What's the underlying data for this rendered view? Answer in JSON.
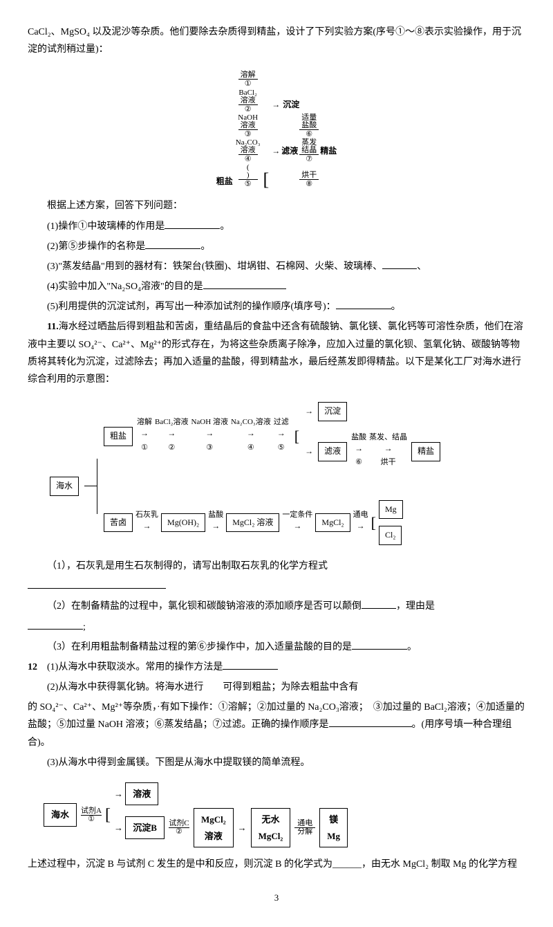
{
  "intro_para": "CaCl₂、MgSO₄ 以及泥沙等杂质。他们要除去杂质得到精盐，设计了下列实验方案(序号①～⑧表示实验操作，用于沉淀的试剂稍过量)：",
  "flow1": {
    "start": "粗盐",
    "steps": [
      {
        "above1": "",
        "above2": "溶解",
        "below": "①"
      },
      {
        "above1": "BaCl₂",
        "above2": "溶液",
        "below": "②"
      },
      {
        "above1": "NaOH",
        "above2": "溶液",
        "below": "③"
      },
      {
        "above1": "Na₂CO₃",
        "above2": "溶液",
        "below": "④"
      },
      {
        "above1": "(",
        "above2": ")",
        "below": "⑤"
      }
    ],
    "branch_top": "沉淀",
    "branch_bot_label1": "滤液",
    "branch_bot_steps": [
      {
        "above1": "适量",
        "above2": "盐酸",
        "below": "⑥"
      },
      {
        "above1": "蒸发",
        "above2": "结晶",
        "below": "⑦"
      },
      {
        "above1": "",
        "above2": "烘干",
        "below": "⑧"
      }
    ],
    "end": "精盐"
  },
  "q_root": "根据上述方案，回答下列问题：",
  "q1": "(1)操作①中玻璃棒的作用是",
  "q2": "(2)第⑤步操作的名称是",
  "q3a": "(3)\"蒸发结晶\"用到的器材有：铁架台(铁圈)、坩埚钳、石棉网、火柴、玻璃棒、",
  "q3b": "、",
  "q4": "(4)实验中加入\"Na₂SO₄溶液\"的目的是",
  "q5": "(5)利用提供的沉淀试剂，再写出一种添加试剂的操作顺序(填序号)：",
  "p11": {
    "label": "11.",
    "text": "海水经过晒盐后得到粗盐和苦卤，重结晶后的食盐中还含有硫酸钠、氯化镁、氯化钙等可溶性杂质，他们在溶液中主要以 SO₄²⁻、Ca²⁺、Mg²⁺的形式存在，为将这些杂质离子除净，应加入过量的氯化钡、氢氧化钠、碳酸钠等物质将其转化为沉淀，过滤除去；再加入适量的盐酸，得到精盐水，最后经蒸发即得精盐。以下是某化工厂对海水进行综合利用的示意图："
  },
  "flow2": {
    "seawater": "海水",
    "top": {
      "start": "粗盐",
      "steps": [
        {
          "above": "溶解",
          "below": "①"
        },
        {
          "above": "BaCl₂溶液",
          "below": "②"
        },
        {
          "above": "NaOH 溶液",
          "below": "③"
        },
        {
          "above": "Na₂CO₃溶液",
          "below": "④"
        },
        {
          "above": "过滤",
          "below": "⑤"
        }
      ],
      "branch_top": "沉淀",
      "branch_bot": "滤液",
      "after_steps": [
        {
          "above": "盐酸",
          "below": "⑥"
        },
        {
          "above": "蒸发、结晶",
          "below": "烘干"
        }
      ],
      "end": "精盐"
    },
    "bot": {
      "start": "苦卤",
      "s1": "石灰乳",
      "b1": "Mg(OH)₂",
      "s2": "盐酸",
      "b2": "MgCl₂ 溶液",
      "s3": "一定条件",
      "b3": "MgCl₂",
      "s4": "通电",
      "out_top": "Mg",
      "out_bot": "Cl₂"
    }
  },
  "p11q1": "（1），石灰乳是用生石灰制得的，请写出制取石灰乳的化学方程式",
  "p11q2a": "（2）在制备精盐的过程中，氯化钡和碳酸钠溶液的添加顺序是否可以颠倒",
  "p11q2b": "，理由是",
  "p11q3": "（3）在利用粗盐制备精盐过程的第⑥步操作中，加入适量盐酸的目的是",
  "p12": {
    "label": "12",
    "q1": "(1)从海水中获取淡水。常用的操作方法是",
    "q2a": "(2)从海水中获得氯化钠。将海水进行　　可得到粗盐；为除去粗盐中含有",
    "q2b": "的 SO₄²⁻、Ca²⁺、Mg²⁺等杂质，·有如下操作：①溶解；②加过量的 Na₂CO₃溶液；　③加过量的 BaCl₂溶液；④加适量的盐酸；⑤加过量 NaOH 溶液；⑥蒸发结晶；⑦过滤。正确的操作顺序是",
    "q2c": "。(用序号填一种合理组合)。",
    "q3": "(3)从海水中得到金属镁。下图是从海水中提取镁的简单流程。"
  },
  "flow3": {
    "start": "海水",
    "s1a": "试剂A",
    "s1b": "①",
    "branch_top": "溶液",
    "branch_bot": "沉淀B",
    "s2a": "试剂C",
    "s2b": "②",
    "b2": "MgCl₂\n溶液",
    "b3": "无水\nMgCl₂",
    "s4a": "通电",
    "s4b": "分解",
    "end": "镁\nMg"
  },
  "final": "上述过程中，沉淀 B 与试剂 C 发生的是中和反应，则沉淀 B 的化学式为______，由无水 MgCl₂ 制取 Mg 的化学方程",
  "pagenum": "3"
}
